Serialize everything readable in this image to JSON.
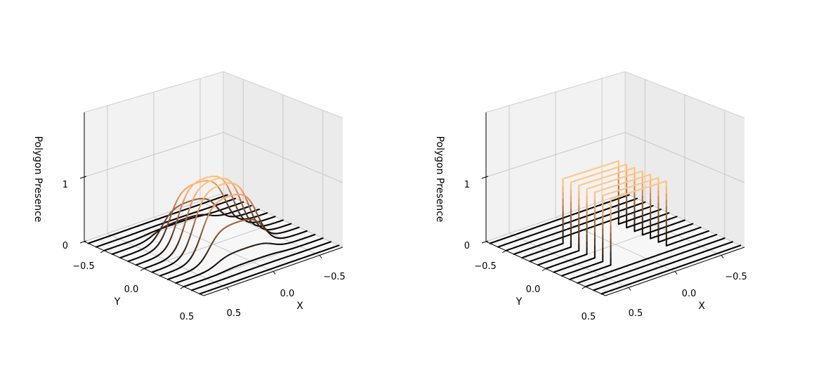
{
  "chart_data": [
    {
      "type": "line3d",
      "title": "",
      "xlabel": "X",
      "ylabel": "Y",
      "zlabel": "Polygon Presence",
      "xticks": [
        "−0.5",
        "0.0",
        "0.5"
      ],
      "yticks": [
        "−0.5",
        "0.0",
        "0.5"
      ],
      "zticks": [
        "0",
        "1"
      ],
      "xlim": [
        -0.75,
        0.75
      ],
      "ylim": [
        -0.75,
        0.75
      ],
      "zlim": [
        0,
        2
      ],
      "grid": true,
      "profile": "smooth",
      "colormap": "copper",
      "lines_y": [
        -0.7,
        -0.6,
        -0.5,
        -0.4,
        -0.3,
        -0.2,
        -0.1,
        0.0,
        0.1,
        0.2,
        0.3,
        0.4,
        0.5,
        0.6,
        0.7
      ],
      "shape_x_range": [
        -0.3,
        0.3
      ],
      "shape_y_range": [
        -0.3,
        0.3
      ],
      "peak_value": 1
    },
    {
      "type": "line3d",
      "title": "",
      "xlabel": "X",
      "ylabel": "Y",
      "zlabel": "Polygon Presence",
      "xticks": [
        "−0.5",
        "0.0",
        "0.5"
      ],
      "yticks": [
        "−0.5",
        "0.0",
        "0.5"
      ],
      "zticks": [
        "0",
        "1"
      ],
      "xlim": [
        -0.75,
        0.75
      ],
      "ylim": [
        -0.75,
        0.75
      ],
      "zlim": [
        0,
        2
      ],
      "grid": true,
      "profile": "step",
      "colormap": "copper",
      "lines_y": [
        -0.7,
        -0.6,
        -0.5,
        -0.4,
        -0.3,
        -0.2,
        -0.1,
        0.0,
        0.1,
        0.2,
        0.3,
        0.4,
        0.5,
        0.6,
        0.7
      ],
      "shape_x_range": [
        -0.3,
        0.3
      ],
      "shape_y_range": [
        -0.3,
        0.3
      ],
      "peak_value": 1
    }
  ]
}
